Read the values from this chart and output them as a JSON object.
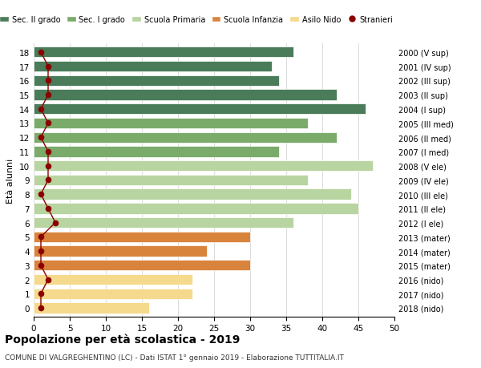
{
  "ages": [
    18,
    17,
    16,
    15,
    14,
    13,
    12,
    11,
    10,
    9,
    8,
    7,
    6,
    5,
    4,
    3,
    2,
    1,
    0
  ],
  "years": [
    "2000 (V sup)",
    "2001 (IV sup)",
    "2002 (III sup)",
    "2003 (II sup)",
    "2004 (I sup)",
    "2005 (III med)",
    "2006 (II med)",
    "2007 (I med)",
    "2008 (V ele)",
    "2009 (IV ele)",
    "2010 (III ele)",
    "2011 (II ele)",
    "2012 (I ele)",
    "2013 (mater)",
    "2014 (mater)",
    "2015 (mater)",
    "2016 (nido)",
    "2017 (nido)",
    "2018 (nido)"
  ],
  "bar_values": [
    36,
    33,
    34,
    42,
    46,
    38,
    42,
    34,
    47,
    38,
    44,
    45,
    36,
    30,
    24,
    30,
    22,
    22,
    16
  ],
  "bar_colors": [
    "#4a7c59",
    "#4a7c59",
    "#4a7c59",
    "#4a7c59",
    "#4a7c59",
    "#7aab6a",
    "#7aab6a",
    "#7aab6a",
    "#b8d4a0",
    "#b8d4a0",
    "#b8d4a0",
    "#b8d4a0",
    "#b8d4a0",
    "#d9843d",
    "#d9843d",
    "#d9843d",
    "#f5d98c",
    "#f5d98c",
    "#f5d98c"
  ],
  "stranieri_values": [
    1,
    2,
    2,
    2,
    1,
    2,
    1,
    2,
    2,
    2,
    1,
    2,
    3,
    1,
    1,
    1,
    2,
    1,
    1
  ],
  "legend_labels": [
    "Sec. II grado",
    "Sec. I grado",
    "Scuola Primaria",
    "Scuola Infanzia",
    "Asilo Nido",
    "Stranieri"
  ],
  "legend_colors": [
    "#4a7c59",
    "#7aab6a",
    "#b8d4a0",
    "#d9843d",
    "#f5d98c",
    "#8b0000"
  ],
  "xlabel_left": "Età alunni",
  "xlim": [
    0,
    50
  ],
  "xticks": [
    0,
    5,
    10,
    15,
    20,
    25,
    30,
    35,
    40,
    45,
    50
  ],
  "title": "Popolazione per età scolastica - 2019",
  "subtitle": "COMUNE DI VALGREGHENTINO (LC) - Dati ISTAT 1° gennaio 2019 - Elaborazione TUTTITALIA.IT",
  "bg_color": "#ffffff",
  "bar_height": 0.75,
  "grid_color": "#cccccc"
}
